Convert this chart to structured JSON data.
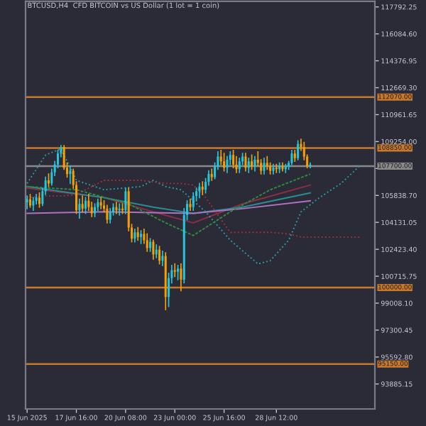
{
  "chart_data": {
    "type": "candlestick",
    "title": "BTCUSD,H4  CFD BITCOIN vs US Dollar (1 lot = 1 coin)",
    "x": [
      "2025-06-15T00:00",
      "2025-06-15T04:00",
      "2025-06-15T08:00",
      "2025-06-15T12:00",
      "2025-06-15T16:00",
      "2025-06-15T20:00",
      "2025-06-16T00:00",
      "2025-06-16T04:00",
      "2025-06-16T08:00",
      "2025-06-16T12:00",
      "2025-06-16T16:00",
      "2025-06-16T20:00",
      "2025-06-17T00:00",
      "2025-06-17T04:00",
      "2025-06-17T08:00",
      "2025-06-17T12:00",
      "2025-06-17T16:00",
      "2025-06-17T20:00",
      "2025-06-18T00:00",
      "2025-06-18T04:00",
      "2025-06-18T08:00",
      "2025-06-18T12:00",
      "2025-06-18T16:00",
      "2025-06-18T20:00",
      "2025-06-19T00:00",
      "2025-06-19T04:00",
      "2025-06-19T08:00",
      "2025-06-19T12:00",
      "2025-06-19T16:00",
      "2025-06-19T20:00",
      "2025-06-20T00:00",
      "2025-06-20T04:00",
      "2025-06-20T08:00",
      "2025-06-20T12:00",
      "2025-06-20T16:00",
      "2025-06-20T20:00",
      "2025-06-21T00:00",
      "2025-06-21T04:00",
      "2025-06-21T08:00",
      "2025-06-21T12:00",
      "2025-06-21T16:00",
      "2025-06-21T20:00",
      "2025-06-22T00:00",
      "2025-06-22T04:00",
      "2025-06-22T08:00",
      "2025-06-22T12:00",
      "2025-06-22T16:00",
      "2025-06-22T20:00",
      "2025-06-23T00:00",
      "2025-06-23T04:00",
      "2025-06-23T08:00",
      "2025-06-23T12:00",
      "2025-06-23T16:00",
      "2025-06-23T20:00",
      "2025-06-24T00:00",
      "2025-06-24T04:00",
      "2025-06-24T08:00",
      "2025-06-24T12:00",
      "2025-06-24T16:00",
      "2025-06-24T20:00",
      "2025-06-25T00:00",
      "2025-06-25T04:00",
      "2025-06-25T08:00",
      "2025-06-25T12:00",
      "2025-06-25T16:00",
      "2025-06-25T20:00",
      "2025-06-26T00:00",
      "2025-06-26T04:00",
      "2025-06-26T08:00",
      "2025-06-26T12:00",
      "2025-06-26T16:00",
      "2025-06-26T20:00",
      "2025-06-27T00:00",
      "2025-06-27T04:00",
      "2025-06-27T08:00",
      "2025-06-27T12:00",
      "2025-06-27T16:00",
      "2025-06-27T20:00",
      "2025-06-28T00:00",
      "2025-06-28T04:00",
      "2025-06-28T08:00",
      "2025-06-28T12:00",
      "2025-06-28T16:00",
      "2025-06-28T20:00",
      "2025-06-29T00:00",
      "2025-06-29T04:00",
      "2025-06-29T08:00",
      "2025-06-29T12:00",
      "2025-06-29T16:00",
      "2025-06-29T20:00",
      "2025-06-30T00:00",
      "2025-06-30T04:00",
      "2025-06-30T08:00"
    ],
    "ohlc": [
      [
        105400,
        105800,
        105000,
        105600
      ],
      [
        105600,
        105900,
        105100,
        105200
      ],
      [
        105200,
        105700,
        104900,
        105500
      ],
      [
        105500,
        105900,
        105300,
        105700
      ],
      [
        105700,
        106000,
        105100,
        105300
      ],
      [
        105300,
        106300,
        105200,
        106100
      ],
      [
        106100,
        107000,
        105900,
        106800
      ],
      [
        106800,
        107200,
        106400,
        106600
      ],
      [
        106600,
        107500,
        106500,
        107300
      ],
      [
        107300,
        108000,
        107100,
        107800
      ],
      [
        107800,
        108700,
        107600,
        108500
      ],
      [
        108500,
        109000,
        108300,
        108900
      ],
      [
        108900,
        109000,
        107500,
        107600
      ],
      [
        107600,
        107900,
        107000,
        107200
      ],
      [
        107200,
        107700,
        106600,
        107400
      ],
      [
        107400,
        107500,
        106300,
        106500
      ],
      [
        106500,
        106700,
        104700,
        104900
      ],
      [
        104900,
        105600,
        104400,
        105300
      ],
      [
        105300,
        105800,
        104800,
        105000
      ],
      [
        105000,
        105700,
        104700,
        105500
      ],
      [
        105500,
        105900,
        104900,
        105100
      ],
      [
        105100,
        105400,
        104500,
        104700
      ],
      [
        104700,
        105300,
        104500,
        105100
      ],
      [
        105100,
        105600,
        104900,
        105400
      ],
      [
        105400,
        105700,
        105000,
        105200
      ],
      [
        105200,
        105500,
        104800,
        105000
      ],
      [
        105000,
        105200,
        104100,
        104300
      ],
      [
        104300,
        105000,
        104100,
        104800
      ],
      [
        104800,
        105300,
        104600,
        105100
      ],
      [
        105100,
        105400,
        104700,
        104900
      ],
      [
        104900,
        105300,
        104600,
        105000
      ],
      [
        105000,
        105300,
        104700,
        104900
      ],
      [
        104900,
        106300,
        104700,
        106100
      ],
      [
        106100,
        106300,
        103600,
        103800
      ],
      [
        103800,
        104000,
        102900,
        103100
      ],
      [
        103100,
        103700,
        102900,
        103500
      ],
      [
        103500,
        103800,
        103000,
        103200
      ],
      [
        103200,
        103600,
        102800,
        103400
      ],
      [
        103400,
        103700,
        102800,
        103000
      ],
      [
        103000,
        103400,
        102300,
        102500
      ],
      [
        102500,
        103100,
        102300,
        102900
      ],
      [
        102900,
        103000,
        101800,
        102100
      ],
      [
        102100,
        102700,
        101900,
        102400
      ],
      [
        102400,
        102600,
        101500,
        101700
      ],
      [
        101700,
        102300,
        101400,
        102000
      ],
      [
        102000,
        102200,
        98600,
        99400
      ],
      [
        99400,
        100900,
        98800,
        100600
      ],
      [
        100600,
        101400,
        100300,
        101100
      ],
      [
        101100,
        101500,
        100700,
        101000
      ],
      [
        101000,
        101400,
        100500,
        101200
      ],
      [
        101200,
        101500,
        99800,
        100500
      ],
      [
        100500,
        105000,
        100300,
        104600
      ],
      [
        104600,
        105500,
        104300,
        105300
      ],
      [
        105300,
        105600,
        104900,
        105100
      ],
      [
        105100,
        106000,
        104900,
        105800
      ],
      [
        105800,
        106300,
        105500,
        106100
      ],
      [
        106100,
        106600,
        105700,
        106400
      ],
      [
        106400,
        106700,
        105900,
        106200
      ],
      [
        106200,
        106900,
        106000,
        106700
      ],
      [
        106700,
        107400,
        106500,
        107200
      ],
      [
        107200,
        107500,
        106800,
        107000
      ],
      [
        107000,
        107900,
        106900,
        107700
      ],
      [
        107700,
        108600,
        107500,
        108300
      ],
      [
        108300,
        108700,
        107800,
        108000
      ],
      [
        108000,
        108500,
        107400,
        107600
      ],
      [
        107600,
        108300,
        107300,
        108100
      ],
      [
        108100,
        108600,
        107800,
        108400
      ],
      [
        108400,
        108700,
        107600,
        107800
      ],
      [
        107800,
        108300,
        107300,
        107500
      ],
      [
        107500,
        108200,
        107300,
        108000
      ],
      [
        108000,
        108500,
        107800,
        108300
      ],
      [
        108300,
        108500,
        107400,
        107600
      ],
      [
        107600,
        108200,
        107300,
        108000
      ],
      [
        108000,
        108400,
        107500,
        107700
      ],
      [
        107700,
        108300,
        107400,
        108100
      ],
      [
        108100,
        108600,
        107700,
        107900
      ],
      [
        107900,
        108100,
        107200,
        107400
      ],
      [
        107400,
        108200,
        107200,
        107900
      ],
      [
        107900,
        108300,
        107500,
        107700
      ],
      [
        107700,
        107900,
        107200,
        107400
      ],
      [
        107400,
        107800,
        107200,
        107600
      ],
      [
        107600,
        107800,
        107300,
        107500
      ],
      [
        107500,
        107900,
        107300,
        107700
      ],
      [
        107700,
        107900,
        107400,
        107500
      ],
      [
        107500,
        107800,
        107300,
        107700
      ],
      [
        107700,
        108000,
        107500,
        107900
      ],
      [
        107900,
        108700,
        107800,
        108500
      ],
      [
        108500,
        108700,
        108000,
        108200
      ],
      [
        108200,
        109300,
        108100,
        109100
      ],
      [
        109100,
        109400,
        108700,
        108900
      ],
      [
        108900,
        109200,
        108100,
        108300
      ],
      [
        108300,
        108400,
        107600,
        107700
      ],
      [
        107700,
        107900,
        107600,
        107800
      ]
    ],
    "colors": [
      "#26c6da",
      "#f5a000",
      "#26c6da",
      "#26c6da",
      "#f5a000",
      "#26c6da",
      "#26c6da",
      "#f5a000",
      "#26c6da",
      "#26c6da",
      "#26c6da",
      "#26c6da",
      "#f5a000",
      "#f5a000",
      "#26c6da",
      "#f5a000",
      "#f5a000",
      "#26c6da",
      "#f5a000",
      "#26c6da",
      "#f5a000",
      "#f5a000",
      "#26c6da",
      "#26c6da",
      "#f5a000",
      "#f5a000",
      "#f5a000",
      "#26c6da",
      "#26c6da",
      "#f5a000",
      "#26c6da",
      "#f5a000",
      "#26c6da",
      "#f5a000",
      "#f5a000",
      "#26c6da",
      "#f5a000",
      "#26c6da",
      "#f5a000",
      "#f5a000",
      "#26c6da",
      "#f5a000",
      "#26c6da",
      "#f5a000",
      "#26c6da",
      "#f5a000",
      "#26c6da",
      "#26c6da",
      "#f5a000",
      "#26c6da",
      "#f5a000",
      "#26c6da",
      "#26c6da",
      "#f5a000",
      "#26c6da",
      "#26c6da",
      "#26c6da",
      "#f5a000",
      "#26c6da",
      "#26c6da",
      "#f5a000",
      "#26c6da",
      "#26c6da",
      "#f5a000",
      "#f5a000",
      "#26c6da",
      "#26c6da",
      "#f5a000",
      "#f5a000",
      "#26c6da",
      "#26c6da",
      "#f5a000",
      "#26c6da",
      "#f5a000",
      "#26c6da",
      "#f5a000",
      "#f5a000",
      "#26c6da",
      "#f5a000",
      "#f5a000",
      "#26c6da",
      "#f5a000",
      "#26c6da",
      "#f5a000",
      "#26c6da",
      "#26c6da",
      "#26c6da",
      "#f5a000",
      "#26c6da",
      "#f5a000",
      "#f5a000",
      "#f5a000",
      "#26c6da"
    ],
    "series": [
      {
        "type": "line",
        "color": "#2e8b3e",
        "line_style": "dashed",
        "x": [
          "2025-06-15T00:00",
          "2025-06-17T16:00",
          "2025-06-20T12:00",
          "2025-06-22T12:00",
          "2025-06-24T00:00",
          "2025-06-26T00:00",
          "2025-06-28T04:00",
          "2025-06-30T08:00"
        ],
        "values": [
          106400,
          106200,
          105300,
          104100,
          103300,
          104800,
          106200,
          107200
        ]
      },
      {
        "type": "line",
        "color": "#8c2f45",
        "line_style": "solid",
        "x": [
          "2025-06-15T00:00",
          "2025-06-19T04:00",
          "2025-06-21T20:00",
          "2025-06-24T00:00",
          "2025-06-26T16:00",
          "2025-06-30T08:00"
        ],
        "values": [
          106300,
          105700,
          104800,
          104100,
          105300,
          106500
        ]
      },
      {
        "type": "line",
        "color": "#2a8c94",
        "line_style": "solid",
        "x": [
          "2025-06-15T00:00",
          "2025-06-19T04:00",
          "2025-06-21T20:00",
          "2025-06-24T00:00",
          "2025-06-26T16:00",
          "2025-06-30T08:00"
        ],
        "values": [
          106400,
          105700,
          105100,
          104700,
          105100,
          106000
        ]
      },
      {
        "type": "line",
        "color": "#b072c0",
        "line_style": "solid",
        "x": [
          "2025-06-15T00:00",
          "2025-06-19T04:00",
          "2025-06-24T00:00",
          "2025-06-26T16:00",
          "2025-06-30T08:00"
        ],
        "values": [
          104700,
          104800,
          104700,
          105000,
          105500
        ]
      },
      {
        "type": "line",
        "color": "#2a9aa4",
        "line_style": "dotted",
        "x": [
          "2025-06-15T00:00",
          "2025-06-16T00:00",
          "2025-06-16T20:00",
          "2025-06-17T16:00",
          "2025-06-19T04:00",
          "2025-06-21T04:00",
          "2025-06-21T20:00",
          "2025-06-22T12:00",
          "2025-06-23T08:00",
          "2025-06-24T00:00",
          "2025-06-24T16:00",
          "2025-06-26T00:00",
          "2025-06-27T12:00",
          "2025-06-28T04:00",
          "2025-06-29T04:00",
          "2025-06-29T20:00",
          "2025-06-30T20:00",
          "2025-07-02T00:00",
          "2025-07-03T00:00"
        ],
        "values": [
          106600,
          108400,
          108800,
          106800,
          106200,
          106400,
          106800,
          106400,
          106200,
          105500,
          104800,
          103000,
          101500,
          101700,
          103000,
          104800,
          105700,
          106600,
          107700
        ]
      },
      {
        "type": "line",
        "color": "#a0303c",
        "line_style": "dotted",
        "x": [
          "2025-06-15T00:00",
          "2025-06-16T00:00",
          "2025-06-16T20:00",
          "2025-06-17T16:00",
          "2025-06-19T04:00",
          "2025-06-21T04:00",
          "2025-06-21T20:00",
          "2025-06-22T12:00",
          "2025-06-23T08:00",
          "2025-06-24T00:00",
          "2025-06-24T16:00",
          "2025-06-26T00:00",
          "2025-06-27T12:00",
          "2025-06-28T04:00",
          "2025-06-29T04:00",
          "2025-06-29T20:00",
          "2025-06-30T20:00",
          "2025-07-02T00:00",
          "2025-07-03T00:00"
        ],
        "values": [
          105700,
          105800,
          105800,
          105900,
          106800,
          106800,
          106700,
          106600,
          106600,
          106500,
          105700,
          103500,
          103500,
          103500,
          103400,
          103200,
          103200,
          103200,
          103200
        ]
      }
    ],
    "ref_lines": [
      {
        "axis": "y",
        "value": 112070,
        "label": "112070.00",
        "color": "#c87a2a",
        "line_style": "solid"
      },
      {
        "axis": "y",
        "value": 108850,
        "label": "108850.00",
        "color": "#c87a2a",
        "line_style": "solid"
      },
      {
        "axis": "y",
        "value": 107700,
        "label": "107700.00",
        "color": "#8a8a8a",
        "line_style": "solid"
      },
      {
        "axis": "y",
        "value": 100000,
        "label": "100000.00",
        "color": "#c87a2a",
        "line_style": "solid"
      },
      {
        "axis": "y",
        "value": 95150,
        "label": "95150.00",
        "color": "#c87a2a",
        "line_style": "solid"
      }
    ],
    "xlim": [
      "2025-06-14T22:00",
      "2025-07-03T20:00"
    ],
    "xticks": [
      {
        "value": "2025-06-15T00:00",
        "label": "15 Jun 2025"
      },
      {
        "value": "2025-06-17T16:00",
        "label": "17 Jun 16:00"
      },
      {
        "value": "2025-06-20T08:00",
        "label": "20 Jun 08:00"
      },
      {
        "value": "2025-06-23T00:00",
        "label": "23 Jun 00:00"
      },
      {
        "value": "2025-06-25T16:00",
        "label": "25 Jun 16:00"
      },
      {
        "value": "2025-06-28T12:00",
        "label": "28 Jun 12:00"
      }
    ],
    "ylim": [
      92300,
      118150
    ],
    "yticks": [
      {
        "value": 117792.25,
        "label": "117792.25"
      },
      {
        "value": 116084.6,
        "label": "116084.60"
      },
      {
        "value": 114376.95,
        "label": "114376.95"
      },
      {
        "value": 112669.3,
        "label": "112669.30"
      },
      {
        "value": 110961.65,
        "label": "110961.65"
      },
      {
        "value": 109254.0,
        "label": "109254.00"
      },
      {
        "value": 107546.35,
        "label": null
      },
      {
        "value": 105838.7,
        "label": "105838.70"
      },
      {
        "value": 104131.05,
        "label": "104131.05"
      },
      {
        "value": 102423.4,
        "label": "102423.40"
      },
      {
        "value": 100715.75,
        "label": "100715.75"
      },
      {
        "value": 99008.1,
        "label": "99008.10"
      },
      {
        "value": 97300.45,
        "label": "97300.45"
      },
      {
        "value": 95592.8,
        "label": "95592.80"
      },
      {
        "value": 93885.15,
        "label": "93885.15"
      }
    ],
    "grid": false,
    "legend": false
  }
}
